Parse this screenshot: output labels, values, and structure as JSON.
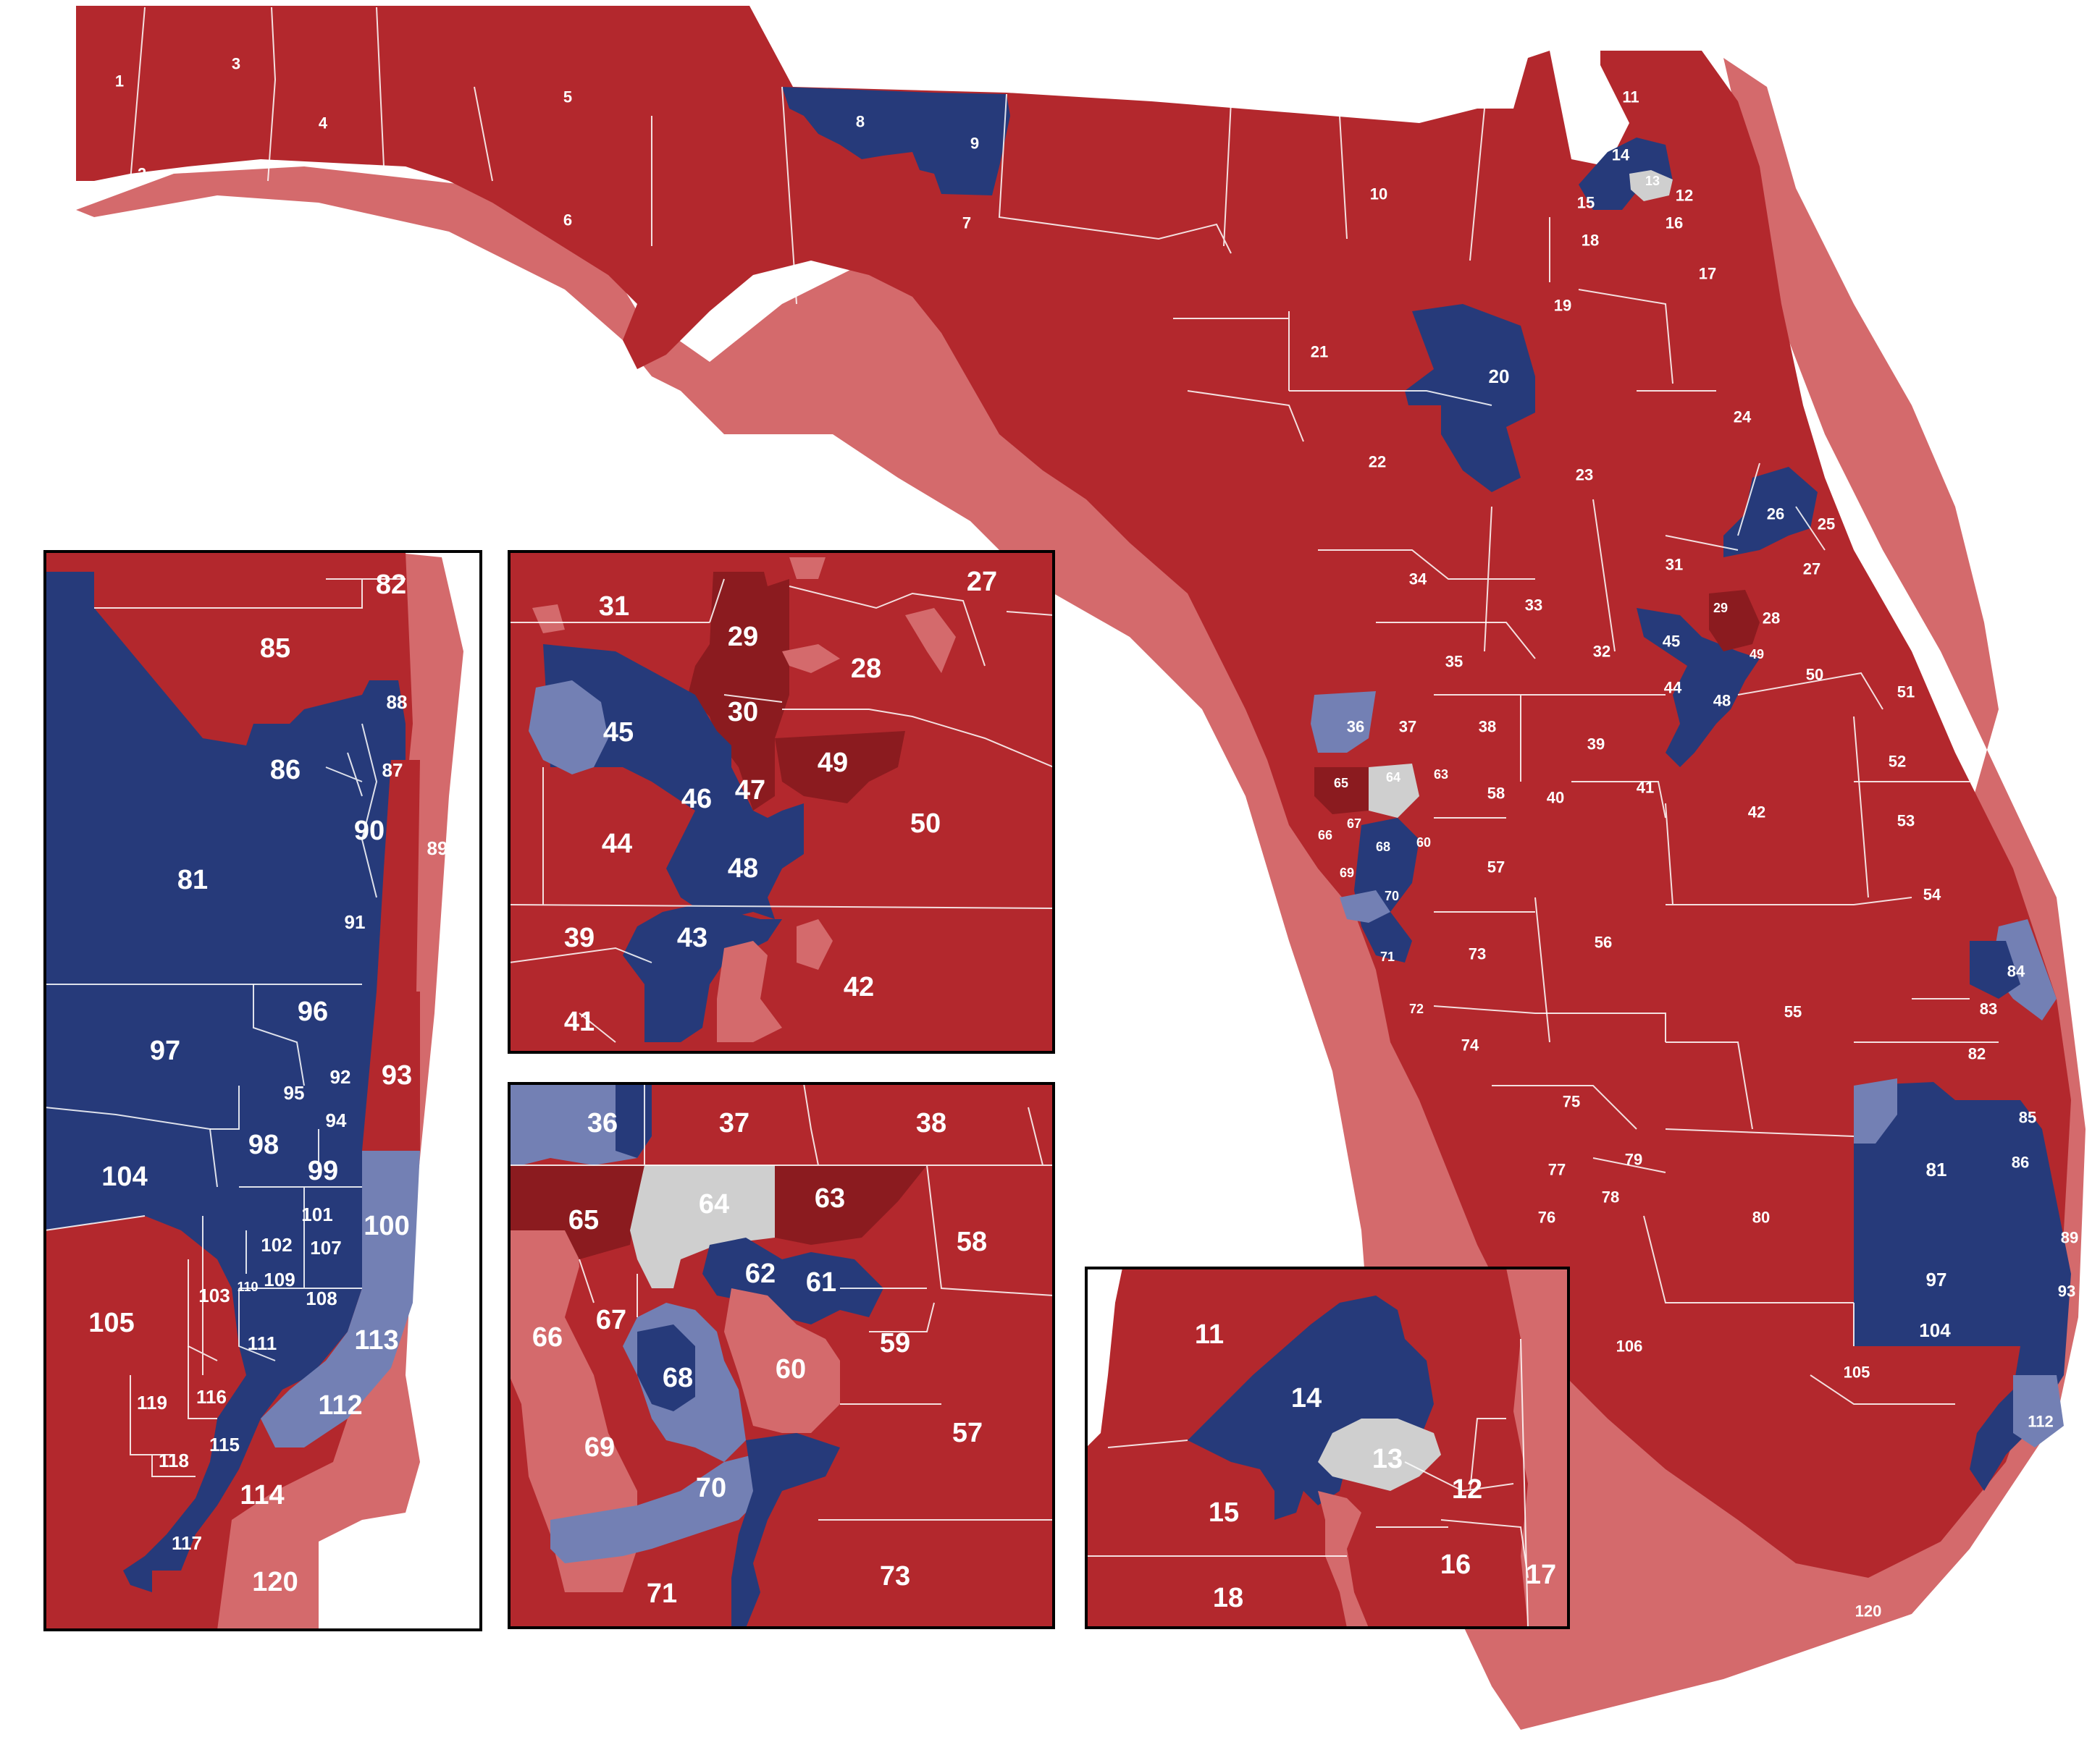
{
  "colors": {
    "rep": "#b3282d",
    "rep_light": "#d46a6c",
    "rep_dark": "#8b1b1f",
    "dem": "#263a7a",
    "dem_light": "#7380b4",
    "tossup": "#cfcfcf",
    "border": "#ffffff"
  },
  "main_labels": [
    "1",
    "2",
    "3",
    "4",
    "5",
    "6",
    "7",
    "8",
    "9",
    "10",
    "11",
    "12",
    "13",
    "14",
    "15",
    "16",
    "17",
    "18",
    "19",
    "20",
    "21",
    "22",
    "23",
    "24",
    "25",
    "26",
    "27",
    "28",
    "29",
    "31",
    "32",
    "33",
    "34",
    "35",
    "36",
    "37",
    "38",
    "39",
    "40",
    "41",
    "42",
    "44",
    "45",
    "48",
    "49",
    "50",
    "51",
    "52",
    "53",
    "54",
    "55",
    "56",
    "57",
    "58",
    "60",
    "63",
    "64",
    "65",
    "66",
    "67",
    "68",
    "69",
    "70",
    "71",
    "72",
    "73",
    "74",
    "75",
    "76",
    "77",
    "78",
    "79",
    "80",
    "81",
    "82",
    "83",
    "84",
    "85",
    "86",
    "89",
    "93",
    "97",
    "104",
    "105",
    "106",
    "112",
    "120"
  ],
  "inset_se_labels": [
    "82",
    "85",
    "88",
    "86",
    "87",
    "90",
    "89",
    "81",
    "91",
    "96",
    "97",
    "92",
    "95",
    "93",
    "94",
    "98",
    "99",
    "104",
    "101",
    "100",
    "102",
    "107",
    "103",
    "110",
    "109",
    "108",
    "113",
    "105",
    "111",
    "119",
    "116",
    "112",
    "115",
    "118",
    "114",
    "117",
    "120"
  ],
  "inset_orlando_labels": [
    "31",
    "29",
    "27",
    "28",
    "30",
    "45",
    "49",
    "46",
    "47",
    "44",
    "50",
    "48",
    "39",
    "43",
    "42",
    "41"
  ],
  "inset_tampa_labels": [
    "36",
    "37",
    "38",
    "65",
    "64",
    "63",
    "58",
    "62",
    "61",
    "67",
    "66",
    "68",
    "60",
    "59",
    "69",
    "57",
    "70",
    "71",
    "73"
  ],
  "inset_jax_labels": [
    "11",
    "14",
    "13",
    "15",
    "12",
    "16",
    "17",
    "18"
  ]
}
